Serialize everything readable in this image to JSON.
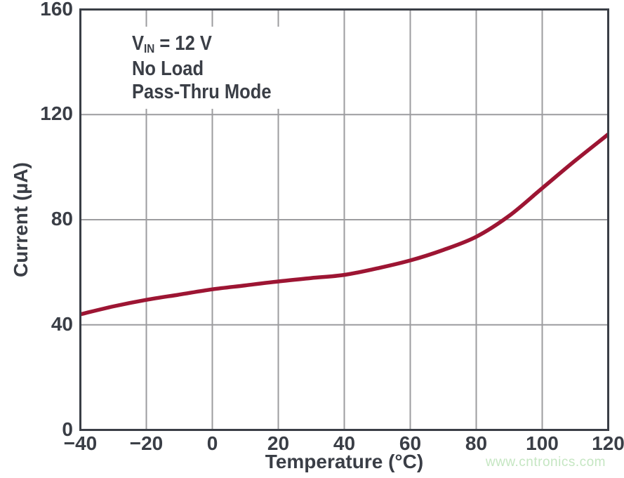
{
  "colors": {
    "axis_frame": "#3a3e46",
    "grid": "#9c9c9f",
    "text": "#3a3e46",
    "background": "#ffffff"
  },
  "watermark": {
    "text": "www.cntronics.com",
    "color": "#c5e6c2"
  },
  "chart_data": {
    "type": "line",
    "title": "",
    "xlabel": "Temperature (°C)",
    "ylabel": "Current (µA)",
    "xlim": [
      -40,
      120
    ],
    "ylim": [
      0,
      160
    ],
    "grid": "on",
    "legend": "none",
    "xticks": {
      "values": [
        -40,
        -20,
        0,
        20,
        40,
        60,
        80,
        100,
        120
      ],
      "labels": [
        "−40",
        "−20",
        "0",
        "20",
        "40",
        "60",
        "80",
        "100",
        "120"
      ]
    },
    "yticks": {
      "values": [
        0,
        40,
        80,
        120,
        160
      ],
      "labels": [
        "0",
        "40",
        "80",
        "120",
        "160"
      ]
    },
    "annotation": {
      "line1": {
        "pre": "V",
        "sub": "IN",
        "post": " = 12 V"
      },
      "line2": "No Load",
      "line3": "Pass-Thru Mode"
    },
    "series": [
      {
        "name": "quiescent-current",
        "color": "#9d1533",
        "x": [
          -40,
          -30,
          -20,
          -10,
          0,
          10,
          20,
          30,
          40,
          50,
          60,
          70,
          80,
          90,
          100,
          110,
          120
        ],
        "y": [
          44,
          47,
          49.5,
          51.5,
          53.5,
          55,
          56.5,
          57.8,
          59,
          61.5,
          64.5,
          68.5,
          73.5,
          81.5,
          92,
          102.5,
          112.5
        ]
      }
    ]
  }
}
